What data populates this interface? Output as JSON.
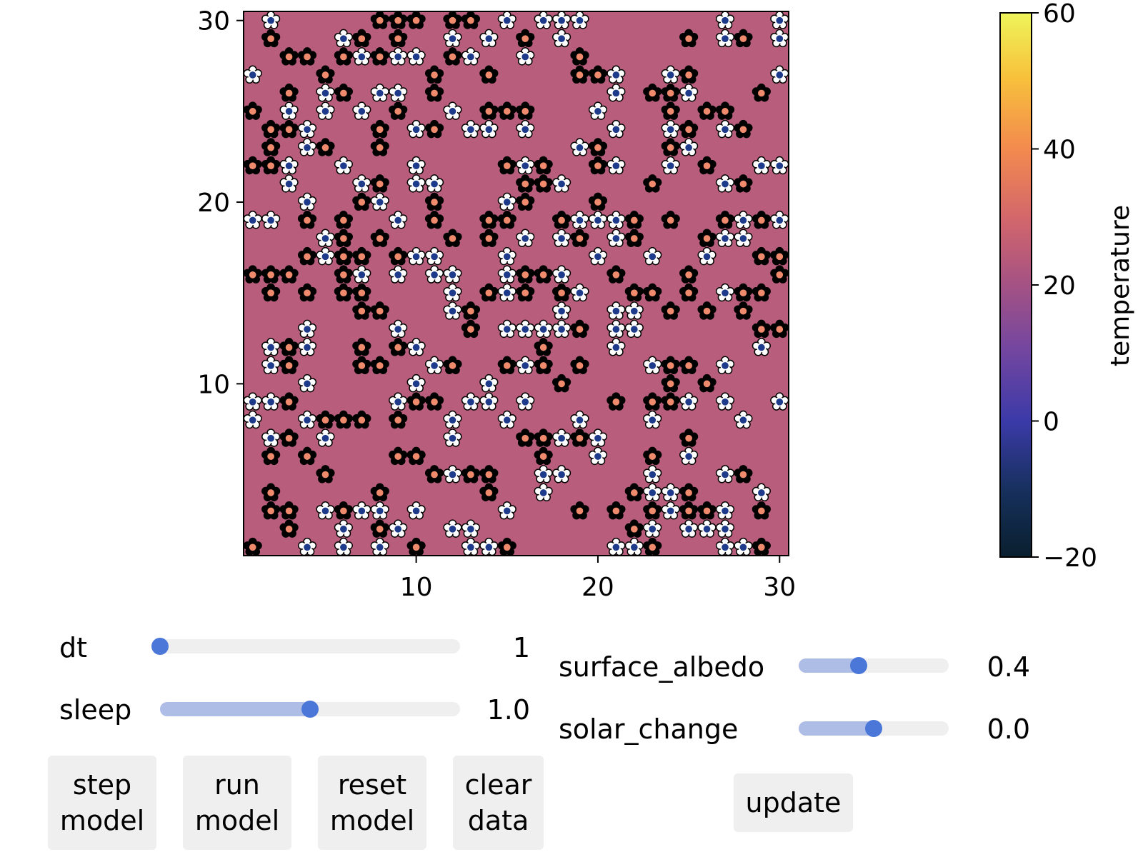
{
  "plot": {
    "x_ticks": [
      "10",
      "20",
      "30"
    ],
    "y_ticks": [
      "30",
      "20",
      "10"
    ],
    "colorbar": {
      "label": "temperature",
      "ticks": [
        "60",
        "40",
        "20",
        "0",
        "−20"
      ],
      "range": [
        -20,
        60
      ]
    },
    "grid_size": 30,
    "colors": {
      "background": "#b85e7c",
      "dark_flower": "#000000",
      "dark_center": "#f08a6c",
      "white_flower": "#ffffff",
      "white_center": "#1e3a8a"
    }
  },
  "controls": {
    "dt": {
      "label": "dt",
      "value": "1",
      "fraction": 0.0
    },
    "sleep": {
      "label": "sleep",
      "value": "1.0",
      "fraction": 0.5
    },
    "surface_albedo": {
      "label": "surface_albedo",
      "value": "0.4",
      "fraction": 0.4
    },
    "solar_change": {
      "label": "solar_change",
      "value": "0.0",
      "fraction": 0.5
    }
  },
  "buttons": {
    "step": "step\nmodel",
    "run": "run\nmodel",
    "reset": "reset\nmodel",
    "clear": "clear\ndata",
    "update": "update"
  }
}
